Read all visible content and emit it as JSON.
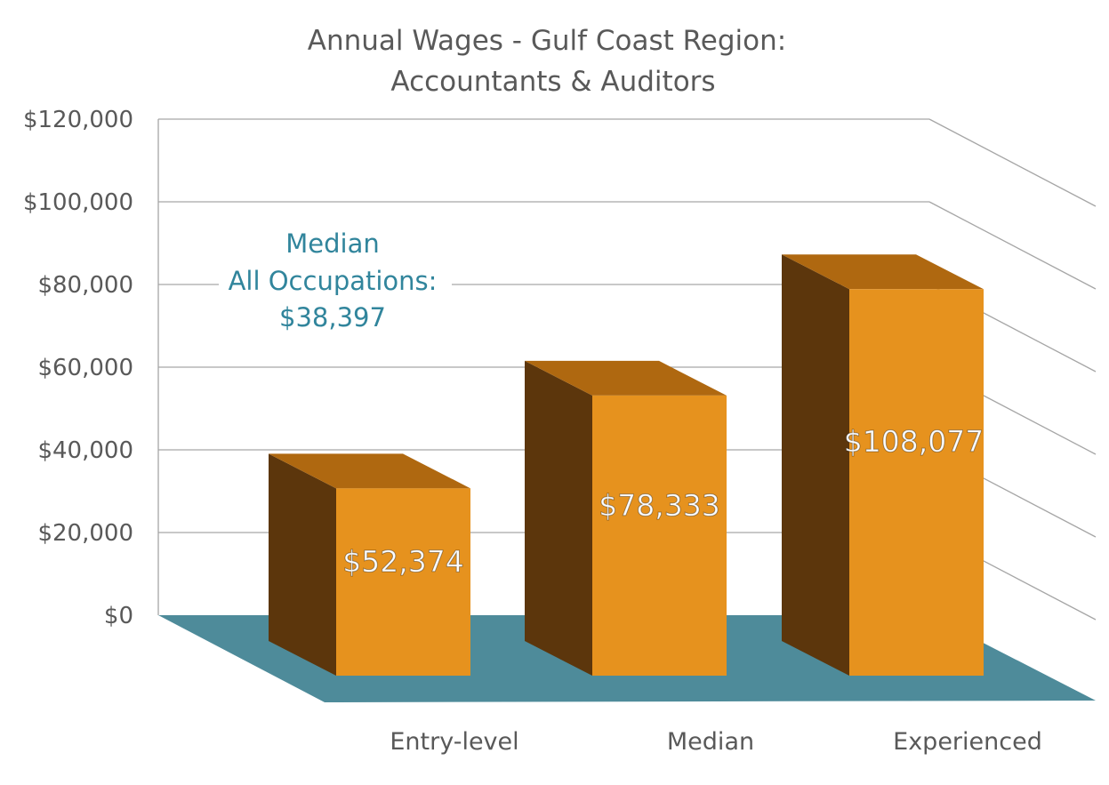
{
  "chart_data": {
    "type": "bar",
    "title": [
      "Annual Wages - Gulf Coast Region:",
      "Accountants & Auditors"
    ],
    "categories": [
      "Entry-level",
      "Median",
      "Experienced"
    ],
    "series": [
      {
        "values": [
          52374,
          78333,
          108077
        ],
        "labels": [
          "$52,374",
          "$78,333",
          "$108,077"
        ]
      }
    ],
    "ylim": [
      0,
      120000
    ],
    "yticks": [
      0,
      20000,
      40000,
      60000,
      80000,
      100000,
      120000
    ],
    "ytick_labels": [
      "$0",
      "$20,000",
      "$40,000",
      "$60,000",
      "$80,000",
      "$100,000",
      "$120,000"
    ],
    "grid": true,
    "three_d": true,
    "annotation": {
      "lines": [
        "Median",
        "All Occupations:",
        "$38,397"
      ],
      "value": 38397
    },
    "colors": {
      "bar_front": "#E6921E",
      "bar_top": "#AF6810",
      "bar_side": "#5C360C",
      "floor": "#4E8B9A",
      "grid": "#A6A6A6",
      "text": "#595959",
      "annotation": "#31859C",
      "data_label": "#FFFFFF"
    }
  }
}
